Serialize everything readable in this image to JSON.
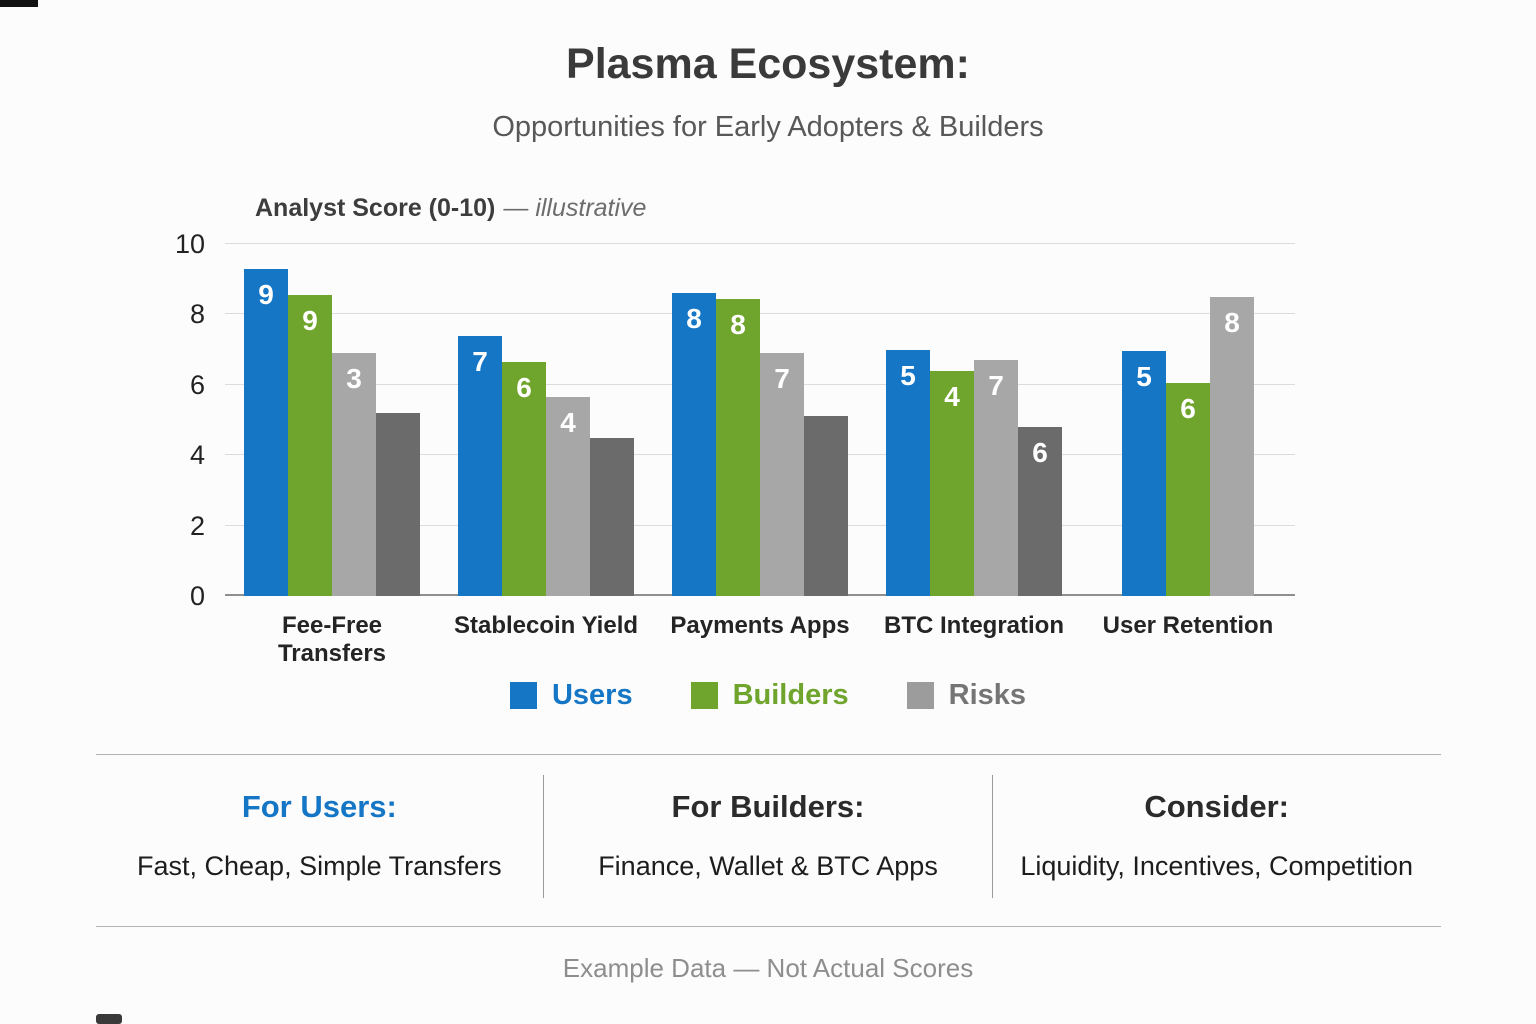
{
  "header": {
    "title": "Plasma Ecosystem:",
    "subtitle": "Opportunities for Early Adopters & Builders"
  },
  "chart": {
    "label_bold": "Analyst Score (0-10)",
    "label_italic": "— illustrative"
  },
  "chart_data": {
    "type": "bar",
    "title": "Analyst Score (0-10) — illustrative",
    "categories": [
      "Fee-Free Transfers",
      "Stablecoin Yield",
      "Payments Apps",
      "BTC Integration",
      "User Retention"
    ],
    "series": [
      {
        "name": "Users",
        "color": "#1576c6",
        "values": [
          9,
          7,
          8,
          5,
          5
        ],
        "drawn_heights": [
          9.3,
          7.4,
          8.6,
          7.0,
          6.95
        ]
      },
      {
        "name": "Builders",
        "color": "#6fa42d",
        "values": [
          9,
          6,
          8,
          4,
          6
        ],
        "drawn_heights": [
          8.55,
          6.65,
          8.45,
          6.4,
          6.05
        ]
      },
      {
        "name": "Risks",
        "color": "#a7a7a7",
        "values": [
          3,
          4,
          7,
          7,
          8
        ],
        "drawn_heights": [
          6.9,
          5.65,
          6.9,
          6.7,
          8.5
        ]
      },
      {
        "name": "Risks-dark",
        "color": "#6b6b6b",
        "values": [
          null,
          null,
          null,
          6,
          null
        ],
        "drawn_heights": [
          5.2,
          4.5,
          5.1,
          4.8,
          0
        ],
        "in_legend": false
      }
    ],
    "ylabel": "Analyst Score (0-10)",
    "ylim": [
      0,
      10
    ],
    "yticks": [
      0,
      2,
      4,
      6,
      8,
      10
    ],
    "grid": true,
    "legend_position": "bottom"
  },
  "legend": {
    "items": [
      {
        "label": "Users",
        "swatch": "#1576c6",
        "text_color": "#1576c6"
      },
      {
        "label": "Builders",
        "swatch": "#6fa42d",
        "text_color": "#6fa42d"
      },
      {
        "label": "Risks",
        "swatch": "#9c9c9c",
        "text_color": "#757575"
      }
    ]
  },
  "insights": {
    "columns": [
      {
        "heading": "For Users:",
        "heading_color": "#1576c6",
        "text": "Fast, Cheap, Simple Transfers"
      },
      {
        "heading": "For Builders:",
        "heading_color": "#2b2b2b",
        "text": "Finance, Wallet & BTC Apps"
      },
      {
        "heading": "Consider:",
        "heading_color": "#2b2b2b",
        "text": "Liquidity, Incentives, Competition"
      }
    ]
  },
  "footnote": "Example Data — Not Actual Scores"
}
